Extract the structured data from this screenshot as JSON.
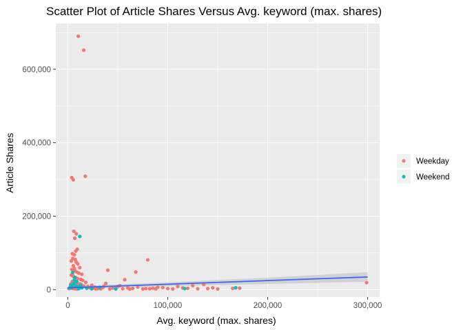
{
  "chart_data": {
    "type": "scatter",
    "title": "Scatter Plot of Article Shares Versus Avg. keyword (max. shares)",
    "xlabel": "Avg. keyword (max. shares)",
    "ylabel": "Article Shares",
    "xlim": [
      -12000,
      312000
    ],
    "ylim": [
      -20000,
      725000
    ],
    "x_ticks": [
      0,
      100000,
      200000,
      300000
    ],
    "x_tick_labels": [
      "0",
      "100,000",
      "200,000",
      "300,000"
    ],
    "y_ticks": [
      0,
      200000,
      400000,
      600000
    ],
    "y_tick_labels": [
      "0",
      "200,000",
      "400,000",
      "600,000"
    ],
    "grid": true,
    "legend_position": "right",
    "colors": {
      "panel": "#ebebeb",
      "grid_major": "#ffffff",
      "Weekday": "#F8766D",
      "Weekend": "#00BFC4",
      "trend_line": "#3366FF",
      "confidence_band": "#cccccc"
    },
    "series": [
      {
        "name": "Weekday",
        "points": [
          [
            10500,
            690000
          ],
          [
            16000,
            652000
          ],
          [
            4000,
            305000
          ],
          [
            5500,
            299000
          ],
          [
            17500,
            309000
          ],
          [
            6000,
            159000
          ],
          [
            8500,
            152000
          ],
          [
            7000,
            140000
          ],
          [
            9500,
            110000
          ],
          [
            8000,
            105000
          ],
          [
            4500,
            98000
          ],
          [
            6500,
            95000
          ],
          [
            5000,
            85000
          ],
          [
            7500,
            82000
          ],
          [
            3500,
            78000
          ],
          [
            8500,
            75000
          ],
          [
            10000,
            70000
          ],
          [
            12000,
            60000
          ],
          [
            5500,
            65000
          ],
          [
            6500,
            58000
          ],
          [
            4000,
            55000
          ],
          [
            7000,
            52000
          ],
          [
            9000,
            48000
          ],
          [
            11000,
            45000
          ],
          [
            14000,
            42000
          ],
          [
            3500,
            40000
          ],
          [
            5000,
            38000
          ],
          [
            6000,
            35000
          ],
          [
            8000,
            33000
          ],
          [
            10000,
            30000
          ],
          [
            13000,
            28000
          ],
          [
            15000,
            25000
          ],
          [
            4500,
            22000
          ],
          [
            6500,
            20000
          ],
          [
            9000,
            18000
          ],
          [
            12000,
            16000
          ],
          [
            3000,
            15000
          ],
          [
            5000,
            13000
          ],
          [
            7000,
            12000
          ],
          [
            11000,
            11000
          ],
          [
            16000,
            10000
          ],
          [
            20000,
            9000
          ],
          [
            4000,
            8000
          ],
          [
            6000,
            7000
          ],
          [
            8000,
            6000
          ],
          [
            2500,
            5000
          ],
          [
            3500,
            4000
          ],
          [
            5500,
            3000
          ],
          [
            7500,
            2500
          ],
          [
            9500,
            2000
          ],
          [
            1000,
            3000
          ],
          [
            2000,
            6000
          ],
          [
            3000,
            9000
          ],
          [
            13500,
            14000
          ],
          [
            18000,
            20000
          ],
          [
            22000,
            5000
          ],
          [
            25000,
            4000
          ],
          [
            27000,
            7000
          ],
          [
            30000,
            3000
          ],
          [
            33000,
            2500
          ],
          [
            35000,
            6000
          ],
          [
            38000,
            17000
          ],
          [
            40000,
            53000
          ],
          [
            42000,
            2000
          ],
          [
            45000,
            4500
          ],
          [
            48000,
            3000
          ],
          [
            50000,
            8000
          ],
          [
            55000,
            2500
          ],
          [
            57000,
            27000
          ],
          [
            60000,
            5000
          ],
          [
            65000,
            3500
          ],
          [
            68000,
            48000
          ],
          [
            70000,
            7000
          ],
          [
            75000,
            2000
          ],
          [
            78000,
            3000
          ],
          [
            80000,
            81000
          ],
          [
            82000,
            2500
          ],
          [
            85000,
            4000
          ],
          [
            88000,
            2000
          ],
          [
            95000,
            5500
          ],
          [
            100000,
            3000
          ],
          [
            105000,
            2000
          ],
          [
            110000,
            9000
          ],
          [
            115000,
            4500
          ],
          [
            120000,
            3500
          ],
          [
            125000,
            11000
          ],
          [
            130000,
            2500
          ],
          [
            136000,
            14000
          ],
          [
            140000,
            3000
          ],
          [
            145000,
            5000
          ],
          [
            150000,
            2000
          ],
          [
            165000,
            3500
          ],
          [
            172000,
            4000
          ],
          [
            299000,
            19000
          ],
          [
            36000,
            9000
          ],
          [
            24000,
            12000
          ],
          [
            28000,
            2000
          ],
          [
            52000,
            11000
          ],
          [
            62000,
            1500
          ],
          [
            90000,
            6500
          ]
        ]
      },
      {
        "name": "Weekend",
        "points": [
          [
            12000,
            145000
          ],
          [
            5000,
            47000
          ],
          [
            7000,
            33000
          ],
          [
            9000,
            22000
          ],
          [
            6000,
            16000
          ],
          [
            8000,
            10000
          ],
          [
            10000,
            8000
          ],
          [
            4000,
            6000
          ],
          [
            14000,
            5000
          ],
          [
            19000,
            4000
          ],
          [
            3000,
            12000
          ],
          [
            11000,
            3000
          ],
          [
            24000,
            2500
          ],
          [
            32000,
            6000
          ],
          [
            48000,
            2000
          ],
          [
            117000,
            3000
          ],
          [
            168000,
            5000
          ],
          [
            6500,
            26000
          ],
          [
            13000,
            12000
          ],
          [
            2000,
            4000
          ]
        ]
      }
    ],
    "trend": {
      "x": [
        0,
        300000
      ],
      "y": [
        5000,
        34500
      ],
      "band_lower": [
        [
          0,
          1500
        ],
        [
          100000,
          9500
        ],
        [
          200000,
          15500
        ],
        [
          300000,
          21500
        ]
      ],
      "band_upper": [
        [
          0,
          8500
        ],
        [
          100000,
          20000
        ],
        [
          200000,
          32500
        ],
        [
          300000,
          47500
        ]
      ]
    }
  }
}
